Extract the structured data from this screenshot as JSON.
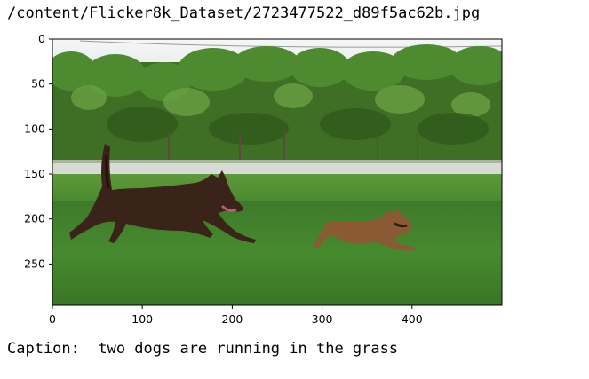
{
  "file_path": "/content/Flicker8k_Dataset/2723477522_d89f5ac62b.jpg",
  "caption": "Caption:  two dogs are running in the grass",
  "chart_data": {
    "type": "image",
    "y_ticks": [
      "0",
      "50",
      "100",
      "150",
      "200",
      "250"
    ],
    "x_ticks": [
      "0",
      "100",
      "200",
      "300",
      "400"
    ],
    "image_width": 500,
    "image_height": 296,
    "image_content": "photo-two-dogs-running-in-grass"
  }
}
